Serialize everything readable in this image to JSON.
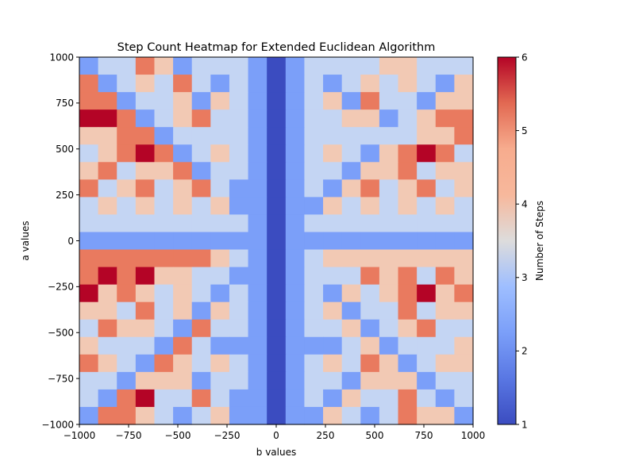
{
  "chart_data": {
    "type": "heatmap",
    "title": "Step Count Heatmap for Extended Euclidean Algorithm",
    "xlabel": "b values",
    "ylabel": "a values",
    "xlim": [
      -1000,
      1000
    ],
    "ylim": [
      -1000,
      1000
    ],
    "xticks": [
      -1000,
      -750,
      -500,
      -250,
      0,
      250,
      500,
      750,
      1000
    ],
    "yticks": [
      -1000,
      -750,
      -500,
      -250,
      0,
      250,
      500,
      750,
      1000
    ],
    "xtick_labels": [
      "−1000",
      "−750",
      "−500",
      "−250",
      "0",
      "250",
      "500",
      "750",
      "1000"
    ],
    "ytick_labels": [
      "−1000",
      "−750",
      "−500",
      "−250",
      "0",
      "250",
      "500",
      "750",
      "1000"
    ],
    "grid": false,
    "colorbar": {
      "label": "Number of Steps",
      "min": 1,
      "max": 6,
      "ticks": [
        1,
        2,
        3,
        4,
        5,
        6
      ],
      "tick_labels": [
        "1",
        "2",
        "3",
        "4",
        "5",
        "6"
      ],
      "colormap": "coolwarm"
    },
    "grid_size": 21,
    "row_order": "top row is a = 1000, bottom row is a = -1000; columns go from b = -1000 (left) to b = 1000 (right)",
    "values": [
      [
        2,
        3,
        3,
        5,
        4,
        2,
        3,
        3,
        3,
        2,
        1,
        2,
        3,
        3,
        3,
        3,
        4,
        4,
        3,
        3,
        3
      ],
      [
        5,
        2,
        3,
        4,
        3,
        5,
        3,
        2,
        3,
        2,
        1,
        2,
        3,
        2,
        3,
        4,
        3,
        4,
        3,
        2,
        4
      ],
      [
        5,
        5,
        2,
        3,
        3,
        4,
        2,
        4,
        3,
        2,
        1,
        2,
        3,
        4,
        2,
        5,
        3,
        3,
        2,
        4,
        4
      ],
      [
        6,
        6,
        5,
        2,
        3,
        4,
        5,
        3,
        3,
        2,
        1,
        2,
        3,
        3,
        4,
        4,
        2,
        3,
        4,
        5,
        5
      ],
      [
        4,
        4,
        5,
        5,
        2,
        3,
        3,
        3,
        3,
        2,
        1,
        2,
        3,
        3,
        3,
        3,
        3,
        3,
        4,
        4,
        5
      ],
      [
        3,
        4,
        5,
        6,
        5,
        2,
        3,
        4,
        3,
        2,
        1,
        2,
        3,
        4,
        3,
        2,
        4,
        5,
        6,
        5,
        3
      ],
      [
        4,
        5,
        3,
        4,
        4,
        5,
        2,
        3,
        3,
        2,
        1,
        2,
        3,
        3,
        2,
        4,
        4,
        5,
        3,
        4,
        4
      ],
      [
        5,
        3,
        4,
        5,
        3,
        4,
        5,
        3,
        2,
        2,
        1,
        2,
        3,
        2,
        4,
        5,
        3,
        4,
        5,
        3,
        4
      ],
      [
        3,
        4,
        3,
        4,
        3,
        4,
        3,
        4,
        2,
        2,
        1,
        2,
        2,
        4,
        3,
        4,
        3,
        4,
        3,
        4,
        3
      ],
      [
        3,
        3,
        3,
        3,
        3,
        3,
        3,
        3,
        3,
        2,
        1,
        2,
        3,
        3,
        3,
        3,
        3,
        3,
        3,
        3,
        3
      ],
      [
        2,
        2,
        2,
        2,
        2,
        2,
        2,
        2,
        2,
        2,
        1,
        2,
        2,
        2,
        2,
        2,
        2,
        2,
        2,
        2,
        2
      ],
      [
        5,
        5,
        5,
        5,
        5,
        5,
        5,
        4,
        3,
        2,
        1,
        2,
        3,
        4,
        4,
        4,
        4,
        4,
        4,
        4,
        4
      ],
      [
        5,
        6,
        5,
        6,
        4,
        4,
        3,
        3,
        2,
        2,
        1,
        2,
        3,
        3,
        3,
        5,
        4,
        5,
        3,
        5,
        4
      ],
      [
        6,
        4,
        5,
        4,
        3,
        4,
        3,
        2,
        3,
        2,
        1,
        2,
        3,
        2,
        4,
        3,
        4,
        5,
        6,
        4,
        5
      ],
      [
        4,
        4,
        3,
        5,
        3,
        4,
        2,
        4,
        3,
        2,
        1,
        2,
        3,
        4,
        2,
        3,
        3,
        5,
        3,
        4,
        4
      ],
      [
        3,
        5,
        4,
        4,
        3,
        2,
        5,
        3,
        3,
        2,
        1,
        2,
        3,
        3,
        4,
        2,
        3,
        4,
        5,
        3,
        3
      ],
      [
        4,
        3,
        3,
        3,
        2,
        5,
        3,
        2,
        2,
        2,
        1,
        2,
        2,
        2,
        3,
        4,
        2,
        3,
        3,
        3,
        4
      ],
      [
        5,
        4,
        3,
        2,
        5,
        4,
        3,
        4,
        3,
        2,
        1,
        2,
        3,
        4,
        3,
        5,
        4,
        2,
        3,
        4,
        4
      ],
      [
        3,
        3,
        2,
        4,
        4,
        4,
        2,
        3,
        3,
        2,
        1,
        2,
        3,
        3,
        2,
        4,
        4,
        4,
        2,
        3,
        3
      ],
      [
        3,
        2,
        5,
        6,
        3,
        3,
        5,
        3,
        2,
        2,
        1,
        2,
        3,
        2,
        4,
        3,
        3,
        5,
        3,
        2,
        3
      ],
      [
        2,
        5,
        5,
        4,
        3,
        2,
        3,
        4,
        2,
        2,
        1,
        2,
        2,
        4,
        3,
        2,
        3,
        5,
        4,
        4,
        2
      ]
    ]
  }
}
